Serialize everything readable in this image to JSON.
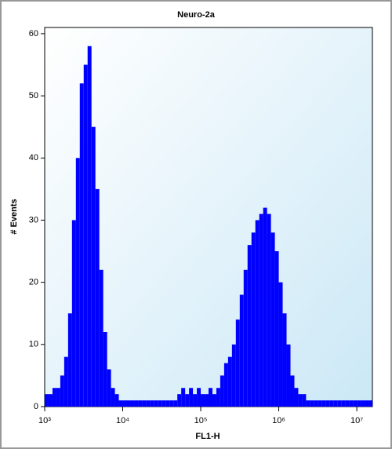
{
  "chart_data": {
    "type": "histogram",
    "title": "Neuro-2a",
    "x_label": "FL1-H",
    "y_label": "# Events",
    "color": "#0000ff",
    "xscale": "log",
    "bins": [
      1000,
      1122,
      1259,
      1413,
      1585,
      1778,
      1995,
      2239,
      2512,
      2818,
      3162,
      3548,
      3981,
      4467,
      5012,
      5623,
      6310,
      7079,
      7943,
      8913,
      10000,
      11220,
      12590,
      14130,
      15850,
      17780,
      19950,
      22390,
      25120,
      28180,
      31620,
      35480,
      39810,
      44670,
      50120,
      56230,
      63100,
      70790,
      79430,
      89130,
      100000,
      112200,
      125900,
      141300,
      158500,
      177800,
      199500,
      223900,
      251200,
      281800,
      316200,
      354800,
      398100,
      446700,
      501200,
      562300,
      631000,
      707900,
      794300,
      891300,
      1000000,
      1122000,
      1259000,
      1413000,
      1585000,
      1778000,
      1995000,
      2239000,
      2512000,
      2818000,
      3162000,
      3548000,
      3981000,
      4467000,
      5012000,
      5623000,
      6310000,
      7079000,
      7943000,
      8913000,
      10000000,
      11220000,
      12590000,
      14130000,
      15850000
    ],
    "values": [
      2,
      2,
      3,
      3,
      5,
      8,
      15,
      30,
      40,
      52,
      55,
      58,
      45,
      35,
      22,
      12,
      6,
      3,
      2,
      1,
      1,
      1,
      1,
      1,
      1,
      1,
      1,
      1,
      1,
      1,
      1,
      1,
      1,
      1,
      2,
      3,
      2,
      3,
      2,
      3,
      2,
      2,
      3,
      2,
      3,
      5,
      7,
      8,
      10,
      14,
      18,
      22,
      26,
      28,
      30,
      31,
      32,
      31,
      28,
      25,
      20,
      15,
      10,
      5,
      3,
      2,
      2,
      1,
      1,
      1,
      1,
      1,
      1,
      1,
      1,
      1,
      1,
      1,
      1,
      1,
      1,
      1,
      1,
      1
    ],
    "xlim": [
      1000,
      15850000
    ],
    "xticks": [
      {
        "value": 1000,
        "label": "10³"
      },
      {
        "value": 10000,
        "label": "10⁴"
      },
      {
        "value": 100000,
        "label": "10⁵"
      },
      {
        "value": 1000000,
        "label": "10⁶"
      },
      {
        "value": 10000000,
        "label": "10⁷"
      }
    ],
    "ylim": [
      0,
      61
    ],
    "yticks": [
      0,
      10,
      20,
      30,
      40,
      50,
      60
    ]
  }
}
